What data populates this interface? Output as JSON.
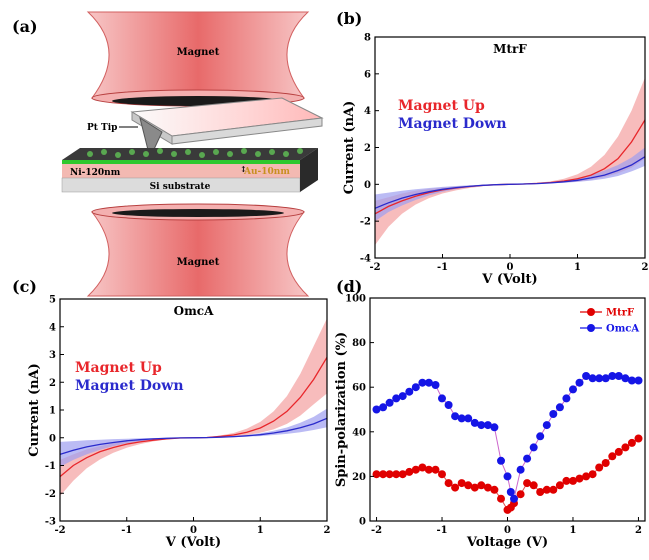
{
  "panels": {
    "a": {
      "label": "(a)",
      "magnet_top": "Magnet",
      "magnet_bottom": "Magnet",
      "pt_tip": "Pt Tip",
      "ni_layer": "Ni-120nm",
      "au_layer": "Au-10nm",
      "si_layer": "Si substrate"
    }
  },
  "colors": {
    "magnet_up": "#e8262b",
    "magnet_up_band": "#f4a0a0",
    "magnet_down": "#2a2acc",
    "magnet_down_band": "#9e9ef0",
    "mtrf_marker": "#e00000",
    "omca_marker": "#1515e6",
    "magnet_body": "#f28b8b",
    "magnet_edge": "#d94a4a"
  },
  "chart_data": [
    {
      "panel": "(b)",
      "type": "line",
      "title": "MtrF",
      "xlabel": "V (Volt)",
      "ylabel": "Current (nA)",
      "xlim": [
        -2,
        2
      ],
      "ylim": [
        -4,
        8
      ],
      "xticks": [
        -2,
        -1,
        0,
        1,
        2
      ],
      "yticks": [
        -4,
        -2,
        0,
        2,
        4,
        6,
        8
      ],
      "legend": [
        "Magnet Up",
        "Magnet Down"
      ],
      "series": [
        {
          "name": "Magnet Up",
          "color": "#e8262b",
          "x": [
            -2,
            -1.8,
            -1.6,
            -1.4,
            -1.2,
            -1,
            -0.8,
            -0.6,
            -0.4,
            -0.2,
            0,
            0.2,
            0.4,
            0.6,
            0.8,
            1,
            1.2,
            1.4,
            1.6,
            1.8,
            2
          ],
          "y": [
            -1.6,
            -1.2,
            -0.9,
            -0.65,
            -0.45,
            -0.3,
            -0.2,
            -0.12,
            -0.06,
            -0.02,
            0,
            0.02,
            0.05,
            0.1,
            0.18,
            0.3,
            0.5,
            0.85,
            1.4,
            2.3,
            3.5
          ],
          "upper": [
            -0.9,
            -0.7,
            -0.5,
            -0.35,
            -0.25,
            -0.17,
            -0.11,
            -0.07,
            -0.03,
            -0.01,
            0,
            0.03,
            0.08,
            0.16,
            0.3,
            0.55,
            0.95,
            1.6,
            2.6,
            4.0,
            5.8
          ],
          "lower": [
            -3.3,
            -2.3,
            -1.6,
            -1.1,
            -0.75,
            -0.5,
            -0.33,
            -0.2,
            -0.1,
            -0.03,
            0,
            0.01,
            0.03,
            0.06,
            0.1,
            0.15,
            0.25,
            0.4,
            0.6,
            0.9,
            1.4
          ]
        },
        {
          "name": "Magnet Down",
          "color": "#2a2acc",
          "x": [
            -2,
            -1.8,
            -1.6,
            -1.4,
            -1.2,
            -1,
            -0.8,
            -0.6,
            -0.4,
            -0.2,
            0,
            0.2,
            0.4,
            0.6,
            0.8,
            1,
            1.2,
            1.4,
            1.6,
            1.8,
            2
          ],
          "y": [
            -1.3,
            -1.0,
            -0.75,
            -0.55,
            -0.4,
            -0.27,
            -0.18,
            -0.11,
            -0.05,
            -0.02,
            0,
            0.02,
            0.04,
            0.08,
            0.14,
            0.22,
            0.35,
            0.5,
            0.75,
            1.05,
            1.5
          ],
          "upper": [
            -0.55,
            -0.45,
            -0.35,
            -0.27,
            -0.2,
            -0.14,
            -0.09,
            -0.05,
            -0.02,
            -0.01,
            0,
            0.03,
            0.06,
            0.11,
            0.2,
            0.32,
            0.5,
            0.75,
            1.05,
            1.45,
            2.0
          ],
          "lower": [
            -2.0,
            -1.5,
            -1.15,
            -0.85,
            -0.6,
            -0.4,
            -0.26,
            -0.15,
            -0.07,
            -0.02,
            0,
            0.01,
            0.02,
            0.05,
            0.09,
            0.13,
            0.2,
            0.3,
            0.45,
            0.7,
            1.0
          ]
        }
      ]
    },
    {
      "panel": "(c)",
      "type": "line",
      "title": "OmcA",
      "xlabel": "V (Volt)",
      "ylabel": "Current (nA)",
      "xlim": [
        -2,
        2
      ],
      "ylim": [
        -3,
        5
      ],
      "xticks": [
        -2,
        -1,
        0,
        1,
        2
      ],
      "yticks": [
        -3,
        -2,
        -1,
        0,
        1,
        2,
        3,
        4,
        5
      ],
      "legend": [
        "Magnet Up",
        "Magnet Down"
      ],
      "series": [
        {
          "name": "Magnet Up",
          "color": "#e8262b",
          "x": [
            -2,
            -1.8,
            -1.6,
            -1.4,
            -1.2,
            -1,
            -0.8,
            -0.6,
            -0.4,
            -0.2,
            0,
            0.2,
            0.4,
            0.6,
            0.8,
            1,
            1.2,
            1.4,
            1.6,
            1.8,
            2
          ],
          "y": [
            -1.4,
            -1.0,
            -0.72,
            -0.5,
            -0.35,
            -0.23,
            -0.15,
            -0.09,
            -0.04,
            -0.01,
            0,
            0.01,
            0.05,
            0.1,
            0.2,
            0.35,
            0.6,
            0.95,
            1.45,
            2.1,
            2.9
          ],
          "upper": [
            -0.8,
            -0.6,
            -0.42,
            -0.3,
            -0.2,
            -0.13,
            -0.08,
            -0.05,
            -0.02,
            -0.005,
            0,
            0.02,
            0.08,
            0.17,
            0.33,
            0.57,
            0.95,
            1.5,
            2.3,
            3.3,
            4.3
          ],
          "lower": [
            -2.1,
            -1.55,
            -1.1,
            -0.78,
            -0.54,
            -0.36,
            -0.23,
            -0.13,
            -0.06,
            -0.02,
            0,
            0.005,
            0.02,
            0.05,
            0.1,
            0.18,
            0.3,
            0.5,
            0.8,
            1.2,
            1.6
          ]
        },
        {
          "name": "Magnet Down",
          "color": "#2a2acc",
          "x": [
            -2,
            -1.8,
            -1.6,
            -1.4,
            -1.2,
            -1,
            -0.8,
            -0.6,
            -0.4,
            -0.2,
            0,
            0.2,
            0.4,
            0.6,
            0.8,
            1,
            1.2,
            1.4,
            1.6,
            1.8,
            2
          ],
          "y": [
            -0.6,
            -0.45,
            -0.33,
            -0.24,
            -0.17,
            -0.11,
            -0.07,
            -0.04,
            -0.02,
            -0.005,
            0,
            0.005,
            0.02,
            0.04,
            0.07,
            0.11,
            0.17,
            0.25,
            0.36,
            0.5,
            0.7
          ],
          "upper": [
            -0.15,
            -0.12,
            -0.09,
            -0.07,
            -0.05,
            -0.035,
            -0.02,
            -0.01,
            -0.005,
            -0.002,
            0,
            0.01,
            0.03,
            0.06,
            0.1,
            0.16,
            0.25,
            0.37,
            0.54,
            0.75,
            1.05
          ],
          "lower": [
            -1.05,
            -0.8,
            -0.6,
            -0.43,
            -0.3,
            -0.2,
            -0.12,
            -0.07,
            -0.03,
            -0.01,
            0,
            0.002,
            0.01,
            0.02,
            0.04,
            0.06,
            0.1,
            0.14,
            0.2,
            0.28,
            0.38
          ]
        }
      ]
    },
    {
      "panel": "(d)",
      "type": "line",
      "title": "",
      "xlabel": "Voltage (V)",
      "ylabel": "Spin-polarization (%)",
      "xlim": [
        -2.1,
        2.1
      ],
      "ylim": [
        0,
        100
      ],
      "xticks": [
        -2,
        -1,
        0,
        1,
        2
      ],
      "yticks": [
        0,
        20,
        40,
        60,
        80,
        100
      ],
      "legend": [
        "MtrF",
        "OmcA"
      ],
      "series": [
        {
          "name": "MtrF",
          "color": "#e00000",
          "x": [
            -2.0,
            -1.9,
            -1.8,
            -1.7,
            -1.6,
            -1.5,
            -1.4,
            -1.3,
            -1.2,
            -1.1,
            -1.0,
            -0.9,
            -0.8,
            -0.7,
            -0.6,
            -0.5,
            -0.4,
            -0.3,
            -0.2,
            -0.1,
            0.0,
            0.05,
            0.1,
            0.2,
            0.3,
            0.4,
            0.5,
            0.6,
            0.7,
            0.8,
            0.9,
            1.0,
            1.1,
            1.2,
            1.3,
            1.4,
            1.5,
            1.6,
            1.7,
            1.8,
            1.9,
            2.0
          ],
          "y": [
            21,
            21,
            21,
            21,
            21,
            22,
            23,
            24,
            23,
            23,
            21,
            17,
            15,
            17,
            16,
            15,
            16,
            15,
            14,
            10,
            5,
            6,
            8,
            12,
            17,
            16,
            13,
            14,
            14,
            16,
            18,
            18,
            19,
            20,
            21,
            24,
            26,
            29,
            31,
            33,
            35,
            37
          ]
        },
        {
          "name": "OmcA",
          "color": "#1515e6",
          "x": [
            -2.0,
            -1.9,
            -1.8,
            -1.7,
            -1.6,
            -1.5,
            -1.4,
            -1.3,
            -1.2,
            -1.1,
            -1.0,
            -0.9,
            -0.8,
            -0.7,
            -0.6,
            -0.5,
            -0.4,
            -0.3,
            -0.2,
            -0.1,
            0.0,
            0.05,
            0.1,
            0.2,
            0.3,
            0.4,
            0.5,
            0.6,
            0.7,
            0.8,
            0.9,
            1.0,
            1.1,
            1.2,
            1.3,
            1.4,
            1.5,
            1.6,
            1.7,
            1.8,
            1.9,
            2.0
          ],
          "y": [
            50,
            51,
            53,
            55,
            56,
            58,
            60,
            62,
            62,
            61,
            55,
            52,
            47,
            46,
            46,
            44,
            43,
            43,
            42,
            27,
            20,
            13,
            10,
            23,
            28,
            33,
            38,
            43,
            48,
            51,
            55,
            59,
            62,
            65,
            64,
            64,
            64,
            65,
            65,
            64,
            63,
            63
          ]
        }
      ]
    }
  ]
}
